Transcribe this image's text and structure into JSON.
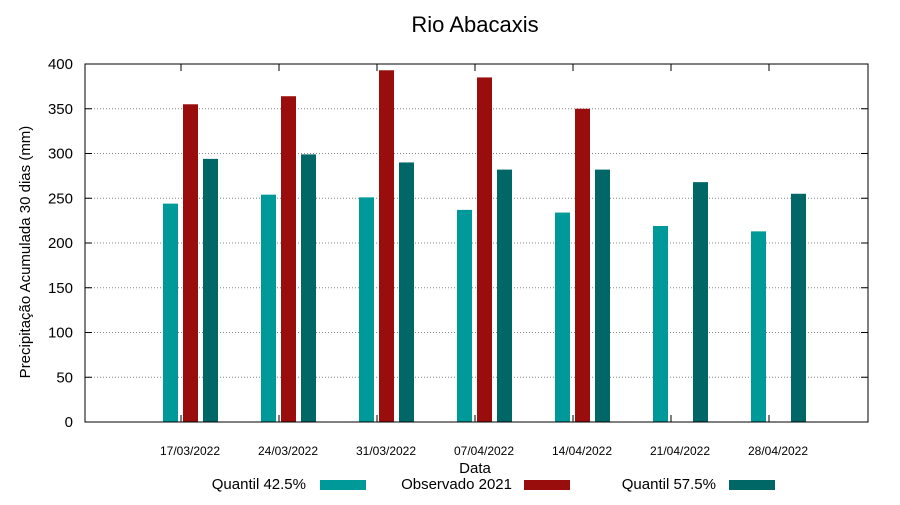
{
  "chart_data": {
    "type": "bar",
    "title": "Rio Abacaxis",
    "xlabel": "Data",
    "ylabel": "Precipitação Acumulada 30 dias (mm)",
    "ylim": [
      0,
      400
    ],
    "yticks": [
      0,
      50,
      100,
      150,
      200,
      250,
      300,
      350,
      400
    ],
    "grid": true,
    "legend_position": "bottom",
    "categories": [
      "17/03/2022",
      "24/03/2022",
      "31/03/2022",
      "07/04/2022",
      "14/04/2022",
      "21/04/2022",
      "28/04/2022"
    ],
    "series": [
      {
        "name": "Quantil 42.5%",
        "color": "#009999",
        "values": [
          244,
          254,
          251,
          237,
          234,
          219,
          213
        ]
      },
      {
        "name": "Observado 2021",
        "color": "#990d0d",
        "values": [
          355,
          364,
          393,
          385,
          350,
          null,
          null
        ]
      },
      {
        "name": "Quantil 57.5%",
        "color": "#006666",
        "values": [
          294,
          299,
          290,
          282,
          282,
          268,
          255
        ]
      }
    ]
  }
}
